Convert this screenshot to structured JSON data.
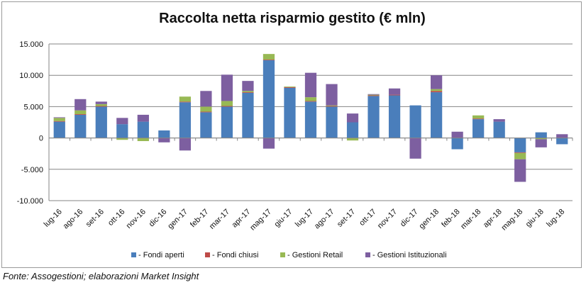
{
  "source_note": "Fonte: Assogestioni; elaborazioni Market Insight",
  "colors": {
    "fondi_aperti": "#4a7ebb",
    "fondi_chiusi": "#be4b48",
    "gestioni_retail": "#98b954",
    "gestioni_istituzionali": "#7d5fa0",
    "grid": "#868686",
    "axis": "#868686"
  },
  "chart_data": {
    "type": "bar",
    "stacked": true,
    "title": "Raccolta netta risparmio gestito (€ mln)",
    "xlabel": "",
    "ylabel": "",
    "ylim": [
      -10000,
      15000
    ],
    "yticks": [
      -10000,
      -5000,
      0,
      5000,
      10000,
      15000
    ],
    "ytick_labels": [
      "-10.000",
      "-5.000",
      "0",
      "5.000",
      "10.000",
      "15.000"
    ],
    "grid": true,
    "legend_position": "bottom",
    "categories": [
      "lug-16",
      "ago-16",
      "set-16",
      "ott-16",
      "nov-16",
      "dic-16",
      "gen-17",
      "feb-17",
      "mar-17",
      "apr-17",
      "mag-17",
      "giu-17",
      "lug-17",
      "ago-17",
      "set-17",
      "ott-17",
      "nov-17",
      "dic-17",
      "gen-18",
      "feb-18",
      "mar-18",
      "apr-18",
      "mag-18",
      "giu-18",
      "lug-18"
    ],
    "series": [
      {
        "name": "Fondi aperti",
        "legend_label": "- Fondi aperti",
        "color_key": "fondi_aperti",
        "values": [
          2600,
          3700,
          5000,
          2200,
          2600,
          1200,
          5700,
          4100,
          5000,
          7200,
          12400,
          8000,
          5800,
          5000,
          2500,
          6700,
          6800,
          5200,
          7300,
          -1800,
          3000,
          2600,
          -2300,
          900,
          -1000
        ]
      },
      {
        "name": "Fondi chiusi",
        "legend_label": "- Fondi chiusi",
        "color_key": "fondi_chiusi",
        "values": [
          100,
          100,
          100,
          0,
          0,
          0,
          100,
          100,
          100,
          100,
          100,
          100,
          100,
          100,
          0,
          100,
          100,
          0,
          200,
          0,
          100,
          0,
          -100,
          0,
          0
        ]
      },
      {
        "name": "Gestioni Retail",
        "legend_label": "- Gestioni Retail",
        "color_key": "gestioni_retail",
        "values": [
          500,
          600,
          300,
          -300,
          -500,
          0,
          800,
          800,
          800,
          200,
          900,
          100,
          600,
          100,
          -400,
          100,
          0,
          0,
          300,
          0,
          500,
          0,
          -1000,
          -200,
          0
        ]
      },
      {
        "name": "Gestioni Istituzionali",
        "legend_label": "- Gestioni Istituzionali",
        "color_key": "gestioni_istituzionali",
        "values": [
          100,
          1800,
          400,
          1000,
          1100,
          -700,
          -2000,
          2500,
          4200,
          1600,
          -1700,
          0,
          3900,
          3400,
          1400,
          100,
          1000,
          -3300,
          2200,
          1000,
          0,
          400,
          -3600,
          -1300,
          600
        ]
      }
    ]
  }
}
